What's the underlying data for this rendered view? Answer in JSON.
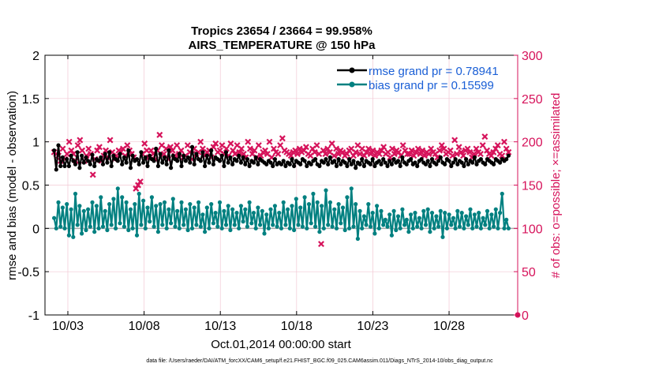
{
  "chart_data": {
    "type": "line",
    "title": "Tropics 23654 / 23664 = 99.958%",
    "subtitle": "AIRS_TEMPERATURE @ 150 hPa",
    "xlabel": "Oct.01,2014 00:00:00 start",
    "ylabel": "rmse and bias (model - observation)",
    "ylabel_right": "# of obs: o=possible; ×=assimilated",
    "x_tick_labels": [
      "10/03",
      "10/08",
      "10/13",
      "10/18",
      "10/23",
      "10/28"
    ],
    "x_tick_values": [
      2,
      7,
      12,
      17,
      22,
      27
    ],
    "xlim": [
      0.5,
      31.5
    ],
    "ylim": [
      -1,
      2
    ],
    "ylim_right": [
      0,
      300
    ],
    "y_ticks": [
      "-1",
      "-0.5",
      "0",
      "0.5",
      "1",
      "1.5",
      "2"
    ],
    "y_ticks_right": [
      "0",
      "50",
      "100",
      "150",
      "200",
      "250",
      "300"
    ],
    "footnote": "data file: /Users/raeder/DAI/ATM_forcXX/CAM6_setup/f.e21.FHIST_BGC.f09_025.CAM6assim.011/Diags_NTrS_2014-10/obs_diag_output.nc",
    "colors": {
      "rmse": "#000000",
      "bias": "#008080",
      "obs": "#d6135b",
      "axis_right": "#d6135b",
      "legend_text": "#1a5fd6",
      "zero_line": "#aaaaaa"
    },
    "series": [
      {
        "name": "rmse grand pr = 0.78941",
        "axis": "left",
        "marker": "circle",
        "values": [
          0.9,
          0.68,
          0.96,
          0.72,
          0.82,
          0.72,
          0.8,
          0.72,
          0.84,
          0.78,
          0.74,
          0.88,
          0.7,
          0.84,
          0.76,
          0.82,
          0.78,
          0.74,
          0.85,
          0.72,
          0.8,
          0.78,
          0.82,
          0.74,
          0.86,
          0.76,
          0.88,
          0.72,
          0.84,
          0.8,
          0.78,
          0.86,
          0.74,
          0.82,
          0.76,
          0.9,
          0.7,
          0.84,
          0.78,
          0.8,
          0.74,
          0.88,
          0.76,
          0.82,
          0.72,
          0.84,
          0.8,
          0.78,
          0.92,
          0.72,
          0.86,
          0.76,
          0.82,
          0.74,
          0.9,
          0.7,
          0.84,
          0.8,
          0.78,
          0.86,
          0.72,
          0.84,
          0.78,
          0.82,
          0.76,
          0.94,
          0.74,
          0.86,
          0.8,
          0.78,
          0.88,
          0.72,
          0.84,
          0.76,
          0.9,
          0.74,
          0.82,
          0.8,
          0.78,
          0.84,
          0.72,
          0.88,
          0.76,
          0.82,
          0.74,
          0.8,
          0.78,
          0.84,
          0.76,
          0.82,
          0.74,
          0.8,
          0.72,
          0.78,
          0.76,
          0.82,
          0.74,
          0.8,
          0.78,
          0.76,
          0.74,
          0.78,
          0.76,
          0.72,
          0.8,
          0.74,
          0.76,
          0.74,
          0.78,
          0.72,
          0.76,
          0.74,
          0.8,
          0.72,
          0.78,
          0.76,
          0.74,
          0.8,
          0.78,
          0.72,
          0.76,
          0.74,
          0.78,
          0.8,
          0.74,
          0.72,
          0.78,
          0.76,
          0.8,
          0.74,
          0.82,
          0.76,
          0.78,
          0.72,
          0.8,
          0.74,
          0.78,
          0.76,
          0.72,
          0.8,
          0.74,
          0.78,
          0.7,
          0.76,
          0.74,
          0.8,
          0.72,
          0.78,
          0.76,
          0.74,
          0.8,
          0.72,
          0.76,
          0.78,
          0.74,
          0.8,
          0.76,
          0.72,
          0.78,
          0.74,
          0.8,
          0.76,
          0.78,
          0.72,
          0.82,
          0.76,
          0.74,
          0.78,
          0.8,
          0.74,
          0.76,
          0.72,
          0.78,
          0.8,
          0.76,
          0.74,
          0.78,
          0.72,
          0.8,
          0.76,
          0.74,
          0.78,
          0.82,
          0.76,
          0.74,
          0.8,
          0.78,
          0.72,
          0.76,
          0.8,
          0.74,
          0.78,
          0.76,
          0.72,
          0.8,
          0.74,
          0.78,
          0.76,
          0.82,
          0.74,
          0.78,
          0.8,
          0.76,
          0.74,
          0.8,
          0.78,
          0.76,
          0.74,
          0.8,
          0.78,
          0.76,
          0.8,
          0.78,
          0.8,
          0.84
        ]
      },
      {
        "name": "bias grand pr = 0.15599",
        "axis": "left",
        "marker": "circle",
        "values": [
          0.12,
          0.0,
          0.3,
          0.02,
          0.24,
          0.0,
          0.28,
          -0.08,
          0.22,
          -0.1,
          0.4,
          0.04,
          0.26,
          -0.06,
          0.2,
          -0.02,
          0.22,
          0.02,
          0.3,
          -0.04,
          0.26,
          0.0,
          0.36,
          0.02,
          0.2,
          -0.02,
          0.28,
          0.04,
          0.34,
          0.0,
          0.46,
          0.06,
          0.36,
          0.02,
          0.3,
          -0.02,
          0.22,
          0.0,
          0.28,
          -0.08,
          0.4,
          0.04,
          0.32,
          0.0,
          0.24,
          0.08,
          0.36,
          0.02,
          0.26,
          -0.04,
          0.28,
          0.04,
          0.3,
          0.0,
          0.22,
          0.06,
          0.34,
          0.02,
          0.2,
          0.0,
          0.3,
          0.04,
          0.22,
          -0.02,
          0.28,
          0.0,
          0.24,
          0.04,
          0.3,
          0.02,
          0.16,
          -0.04,
          0.24,
          0.0,
          0.28,
          0.06,
          0.18,
          0.02,
          0.3,
          0.0,
          0.2,
          0.04,
          0.26,
          -0.02,
          0.22,
          0.04,
          0.18,
          0.0,
          0.26,
          0.08,
          0.22,
          0.02,
          0.3,
          0.06,
          0.18,
          0.0,
          0.24,
          0.04,
          0.2,
          -0.06,
          0.16,
          0.0,
          0.22,
          0.04,
          0.26,
          0.02,
          0.18,
          0.0,
          0.3,
          0.04,
          0.22,
          0.0,
          0.26,
          -0.02,
          0.34,
          0.04,
          0.24,
          0.02,
          0.36,
          0.0,
          0.28,
          0.06,
          0.4,
          0.02,
          0.3,
          -0.04,
          0.26,
          0.0,
          0.44,
          0.04,
          0.3,
          0.02,
          0.22,
          0.0,
          0.28,
          0.06,
          0.24,
          -0.02,
          0.36,
          0.0,
          0.46,
          0.02,
          0.28,
          -0.12,
          0.2,
          0.0,
          0.14,
          0.04,
          0.28,
          0.02,
          0.18,
          -0.06,
          0.26,
          0.0,
          0.2,
          0.04,
          0.1,
          0.02,
          0.16,
          -0.08,
          0.2,
          -0.02,
          0.14,
          0.0,
          0.22,
          0.04,
          0.1,
          -0.04,
          0.16,
          0.0,
          0.18,
          0.02,
          0.12,
          0.0,
          0.2,
          0.04,
          0.22,
          -0.04,
          0.18,
          0.0,
          0.14,
          0.02,
          0.2,
          -0.1,
          0.18,
          0.0,
          0.16,
          0.04,
          0.12,
          0.0,
          0.2,
          0.02,
          0.18,
          0.0,
          0.14,
          0.04,
          0.22,
          0.0,
          0.16,
          0.02,
          0.18,
          0.0,
          0.12,
          0.04,
          0.2,
          0.0,
          0.16,
          0.02,
          0.22,
          0.0,
          0.18,
          0.4,
          0.0,
          0.1,
          0.0
        ]
      },
      {
        "name": "obs assimilated",
        "axis": "right",
        "marker": "x",
        "values": [
          188,
          186,
          184,
          178,
          192,
          180,
          186,
          200,
          190,
          186,
          178,
          196,
          202,
          190,
          178,
          184,
          192,
          186,
          162,
          180,
          190,
          194,
          178,
          184,
          190,
          182,
          202,
          188,
          180,
          184,
          190,
          188,
          192,
          184,
          196,
          190,
          186,
          182,
          146,
          150,
          154,
          186,
          198,
          190,
          182,
          190,
          186,
          180,
          190,
          208,
          196,
          186,
          192,
          180,
          194,
          190,
          184,
          196,
          186,
          190,
          182,
          184,
          196,
          188,
          180,
          192,
          186,
          188,
          200,
          192,
          184,
          188,
          190,
          182,
          194,
          198,
          188,
          190,
          196,
          186,
          192,
          184,
          198,
          190,
          186,
          196,
          188,
          192,
          186,
          182,
          200,
          192,
          186,
          190,
          182,
          196,
          184,
          188,
          190,
          186,
          200,
          182,
          192,
          188,
          186,
          196,
          204,
          190,
          188,
          186,
          184,
          188,
          190,
          186,
          192,
          188,
          190,
          194,
          186,
          184,
          192,
          188,
          196,
          186,
          82,
          190,
          186,
          192,
          188,
          198,
          184,
          192,
          186,
          190,
          188,
          184,
          186,
          190,
          192,
          184,
          188,
          196,
          186,
          192,
          184,
          188,
          192,
          186,
          190,
          184,
          188,
          186,
          190,
          194,
          186,
          188,
          182,
          192,
          186,
          190,
          188,
          184,
          196,
          190,
          186,
          186,
          190,
          184,
          188,
          192,
          186,
          190,
          184,
          188,
          186,
          192,
          188,
          186,
          182,
          190,
          196,
          192,
          186,
          188,
          190,
          184,
          202,
          186,
          194,
          188,
          184,
          190,
          192,
          188,
          182,
          186,
          192,
          188,
          186,
          196,
          206,
          190,
          186,
          184,
          188,
          192,
          196,
          186,
          184,
          200,
          192,
          188
        ]
      },
      {
        "name": "obs possible",
        "axis": "right",
        "marker": "circle",
        "values": [
          0
        ]
      }
    ]
  },
  "legend": {
    "rmse": "rmse grand pr = 0.78941",
    "bias": "bias grand pr = 0.15599"
  }
}
